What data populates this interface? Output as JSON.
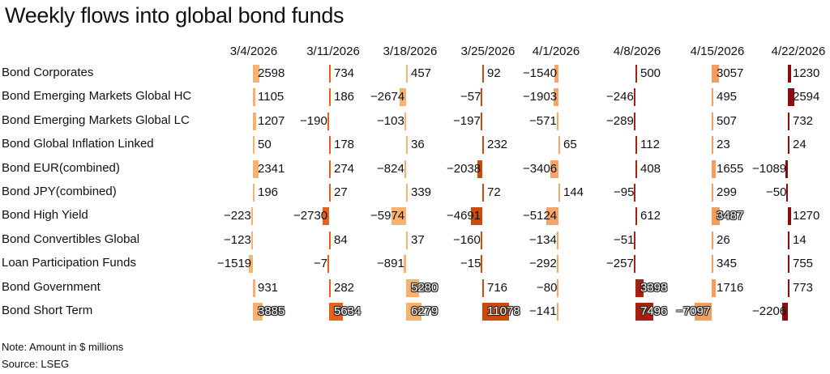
{
  "chart_data": {
    "type": "bar",
    "title": "Weekly flows into global bond funds",
    "columns": [
      "3/4/2026",
      "3/11/2026",
      "3/18/2026",
      "3/25/2026",
      "4/1/2026",
      "4/8/2026",
      "4/15/2026",
      "4/22/2026"
    ],
    "rows": [
      {
        "name": "Bond Corporates",
        "values": [
          2598,
          734,
          457,
          92,
          -1540,
          500,
          3057,
          1230
        ]
      },
      {
        "name": "Bond Emerging Markets Global HC",
        "values": [
          1105,
          186,
          -2674,
          -57,
          -1903,
          -246,
          495,
          2594
        ]
      },
      {
        "name": "Bond Emerging Markets Global LC",
        "values": [
          1207,
          -190,
          -103,
          -197,
          -571,
          -289,
          507,
          732
        ]
      },
      {
        "name": "Bond Global Inflation Linked",
        "values": [
          50,
          178,
          36,
          232,
          65,
          112,
          23,
          24
        ]
      },
      {
        "name": "Bond EUR(combined)",
        "values": [
          2341,
          274,
          -824,
          -2038,
          -3406,
          408,
          1655,
          -1089
        ]
      },
      {
        "name": "Bond JPY(combined)",
        "values": [
          196,
          27,
          339,
          72,
          144,
          -95,
          299,
          -50
        ]
      },
      {
        "name": "Bond High Yield",
        "values": [
          -223,
          -2730,
          -5974,
          -4691,
          -5124,
          612,
          3487,
          1270
        ]
      },
      {
        "name": "Bond Convertibles Global",
        "values": [
          -123,
          84,
          37,
          -160,
          -134,
          -51,
          26,
          14
        ]
      },
      {
        "name": "Loan Participation Funds",
        "values": [
          -1519,
          -7,
          -891,
          -15,
          -292,
          -257,
          345,
          755
        ]
      },
      {
        "name": "Bond Government",
        "values": [
          931,
          282,
          5280,
          716,
          -80,
          3398,
          1716,
          773
        ]
      },
      {
        "name": "Bond Short Term",
        "values": [
          3885,
          5634,
          6279,
          11078,
          -141,
          7496,
          -7097,
          -2206
        ]
      }
    ],
    "column_colors": [
      "#f9b16e",
      "#e8601c",
      "#f9b16e",
      "#cc4a0a",
      "#f6a46a",
      "#a8200f",
      "#f39d5e",
      "#8b0c0c"
    ]
  },
  "footer": {
    "note": "Note: Amount in $ millions",
    "source": "Source: LSEG"
  }
}
